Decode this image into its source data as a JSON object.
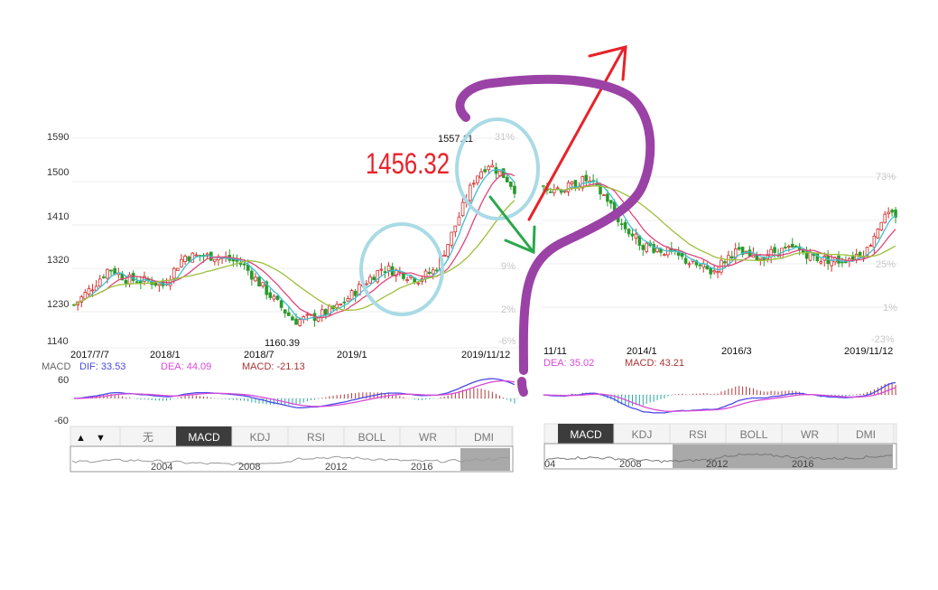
{
  "left_panel": {
    "y_ticks": [
      "1590",
      "1500",
      "1410",
      "1320",
      "1230",
      "1140"
    ],
    "right_pct_ticks": [
      "31%",
      "9%",
      "2%",
      "-6%"
    ],
    "x_ticks": [
      "2017/7/7",
      "2018/1",
      "2018/7",
      "2019/1",
      "2019/11/12"
    ],
    "high_label": "1557.11",
    "low_label": "1160.39",
    "annotation_price": "1456.32",
    "macd_title": "MACD",
    "dif_label": "DIF: 33.53",
    "dea_label": "DEA: 44.09",
    "macd_label": "MACD: -21.13",
    "macd_y_ticks": [
      "60",
      "-60"
    ],
    "tabs": [
      "无",
      "MACD",
      "KDJ",
      "RSI",
      "BOLL",
      "WR",
      "DMI"
    ],
    "active_tab": "MACD",
    "nav_up": "▲",
    "nav_down": "▼",
    "overview_years": [
      "2004",
      "2008",
      "2012",
      "2016"
    ]
  },
  "right_panel": {
    "right_pct_ticks": [
      "73%",
      "25%",
      "1%",
      "-23%"
    ],
    "x_ticks": [
      "11/11",
      "2014/1",
      "2016/3",
      "2019/11/12"
    ],
    "dea_label": "DEA: 35.02",
    "macd_label": "MACD: 43.21",
    "tabs": [
      "MACD",
      "KDJ",
      "RSI",
      "BOLL",
      "WR",
      "DMI"
    ],
    "active_tab": "MACD",
    "overview_years": [
      "04",
      "2008",
      "2012",
      "2016"
    ]
  },
  "colors": {
    "up": "#d22d2d",
    "down": "#2a9a2a",
    "ma5": "#3ebfd0",
    "ma10": "#e0457a",
    "ma20": "#9cc03a",
    "dif": "#4a4ae8",
    "dea": "#d84ad8",
    "macd": "#a33",
    "annotation_red": "#e8222a",
    "arrow_red": "#e8222a",
    "arrow_green": "#2aa84a",
    "circle": "#a9dbe6",
    "question_mark": "#9b42a6",
    "active_tab_bg": "#3c3c3c"
  },
  "chart_data": [
    {
      "type": "candlestick",
      "title": "",
      "x_range": [
        "2017/7/7",
        "2019/11/12"
      ],
      "ylim": [
        1140,
        1590
      ],
      "price_high": 1557.11,
      "price_low": 1160.39,
      "anchors": [
        {
          "t": 0.0,
          "v": 1225
        },
        {
          "t": 0.04,
          "v": 1262
        },
        {
          "t": 0.08,
          "v": 1305
        },
        {
          "t": 0.12,
          "v": 1280
        },
        {
          "t": 0.18,
          "v": 1275
        },
        {
          "t": 0.2,
          "v": 1265
        },
        {
          "t": 0.25,
          "v": 1330
        },
        {
          "t": 0.32,
          "v": 1330
        },
        {
          "t": 0.38,
          "v": 1315
        },
        {
          "t": 0.45,
          "v": 1240
        },
        {
          "t": 0.5,
          "v": 1190
        },
        {
          "t": 0.55,
          "v": 1200
        },
        {
          "t": 0.6,
          "v": 1220
        },
        {
          "t": 0.65,
          "v": 1265
        },
        {
          "t": 0.7,
          "v": 1305
        },
        {
          "t": 0.74,
          "v": 1295
        },
        {
          "t": 0.78,
          "v": 1280
        },
        {
          "t": 0.82,
          "v": 1300
        },
        {
          "t": 0.85,
          "v": 1360
        },
        {
          "t": 0.88,
          "v": 1430
        },
        {
          "t": 0.91,
          "v": 1500
        },
        {
          "t": 0.94,
          "v": 1530
        },
        {
          "t": 0.98,
          "v": 1500
        },
        {
          "t": 1.0,
          "v": 1475
        }
      ]
    },
    {
      "type": "candlestick",
      "title": "",
      "x_range": [
        "11/11",
        "2019/11/12"
      ],
      "pct_range": [
        -23,
        73
      ],
      "anchors": [
        {
          "t": 0.0,
          "v": 1480
        },
        {
          "t": 0.06,
          "v": 1475
        },
        {
          "t": 0.12,
          "v": 1495
        },
        {
          "t": 0.18,
          "v": 1455
        },
        {
          "t": 0.22,
          "v": 1400
        },
        {
          "t": 0.28,
          "v": 1355
        },
        {
          "t": 0.35,
          "v": 1340
        },
        {
          "t": 0.42,
          "v": 1315
        },
        {
          "t": 0.48,
          "v": 1295
        },
        {
          "t": 0.54,
          "v": 1340
        },
        {
          "t": 0.6,
          "v": 1325
        },
        {
          "t": 0.66,
          "v": 1340
        },
        {
          "t": 0.72,
          "v": 1345
        },
        {
          "t": 0.78,
          "v": 1325
        },
        {
          "t": 0.84,
          "v": 1320
        },
        {
          "t": 0.88,
          "v": 1330
        },
        {
          "t": 0.92,
          "v": 1345
        },
        {
          "t": 0.96,
          "v": 1410
        },
        {
          "t": 1.0,
          "v": 1420
        }
      ]
    }
  ]
}
